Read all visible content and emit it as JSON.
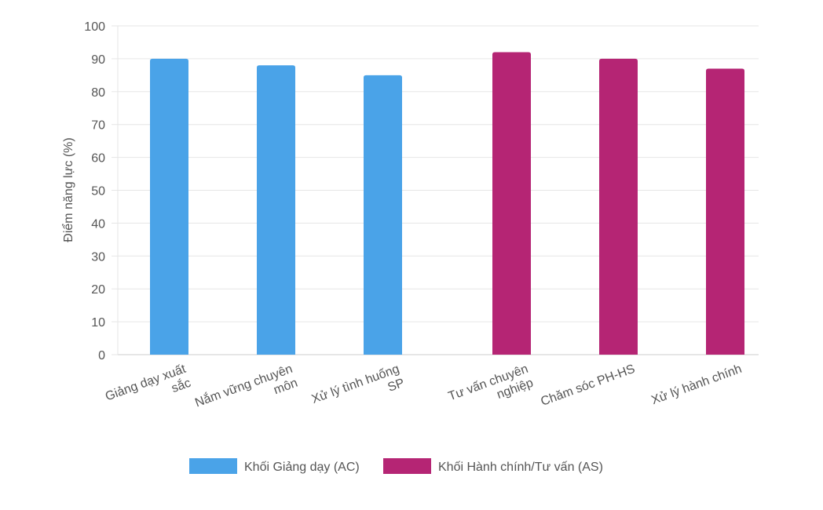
{
  "chart_data": {
    "type": "bar",
    "categories": [
      [
        "Giảng dạy xuất",
        "sắc"
      ],
      [
        "Nắm vững chuyên",
        "môn"
      ],
      [
        "Xử lý tình huống",
        "SP"
      ],
      [
        "Tư vấn chuyên",
        "nghiệp"
      ],
      [
        "Chăm sóc PH-HS"
      ],
      [
        "Xử lý hành chính"
      ]
    ],
    "series": [
      {
        "name": "Khối Giảng dạy (AC)",
        "color": "#4aa3e8",
        "values": [
          90,
          88,
          85,
          null,
          null,
          null
        ]
      },
      {
        "name": "Khối Hành chính/Tư vấn (AS)",
        "color": "#b52574",
        "values": [
          null,
          null,
          null,
          92,
          90,
          87
        ]
      }
    ],
    "ylabel": "Điểm năng lực (%)",
    "ylim": [
      0,
      100
    ],
    "yticks": [
      0,
      10,
      20,
      30,
      40,
      50,
      60,
      70,
      80,
      90,
      100
    ],
    "grid": true,
    "legend": "bottom"
  }
}
